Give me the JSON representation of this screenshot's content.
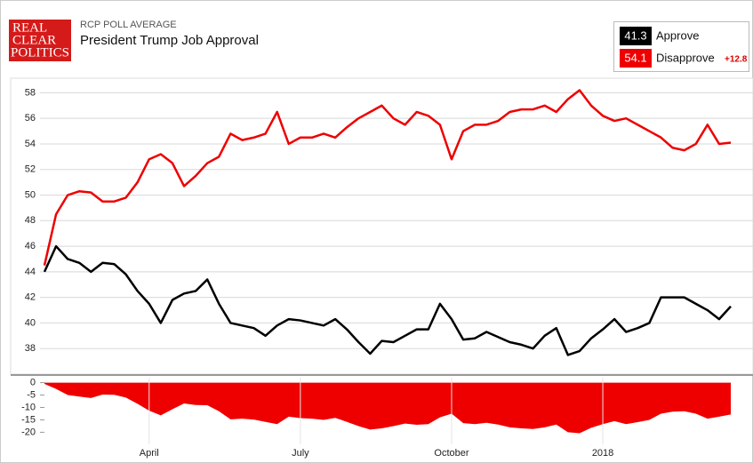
{
  "header": {
    "logo": [
      "REAL",
      "CLEAR",
      "POLITICS"
    ],
    "kicker": "RCP POLL AVERAGE",
    "title": "President Trump Job Approval"
  },
  "legend": {
    "approve_value": "41.3",
    "disapprove_value": "54.1",
    "spread": "+12.8"
  },
  "chart_data": [
    {
      "type": "line",
      "ylim": [
        36,
        59
      ],
      "yticks": [
        38,
        40,
        42,
        44,
        46,
        48,
        50,
        52,
        54,
        56,
        58
      ],
      "grid": true,
      "series": [
        {
          "name": "Approve",
          "color": "#000000",
          "values": [
            44,
            46,
            45,
            44.7,
            44,
            44.7,
            44.6,
            43.8,
            42.5,
            41.5,
            40,
            41.8,
            42.3,
            42.5,
            43.4,
            41.5,
            40,
            39.8,
            39.6,
            39,
            39.8,
            40.3,
            40.2,
            40,
            39.8,
            40.3,
            39.5,
            38.5,
            37.6,
            38.6,
            38.5,
            39,
            39.5,
            39.5,
            41.5,
            40.3,
            38.7,
            38.8,
            39.3,
            38.9,
            38.5,
            38.3,
            38,
            39,
            39.6,
            37.5,
            37.8,
            38.8,
            39.5,
            40.3,
            39.3,
            39.6,
            40,
            42,
            42,
            42,
            41.5,
            41,
            40.3,
            41.3
          ]
        },
        {
          "name": "Disapprove",
          "color": "#ee0000",
          "values": [
            44.5,
            48.5,
            50,
            50.3,
            50.2,
            49.5,
            49.5,
            49.8,
            51,
            52.8,
            53.2,
            52.5,
            50.7,
            51.5,
            52.5,
            53,
            54.8,
            54.3,
            54.5,
            54.8,
            56.5,
            54,
            54.5,
            54.5,
            54.8,
            54.5,
            55.3,
            56,
            56.5,
            57,
            56,
            55.5,
            56.5,
            56.2,
            55.5,
            52.8,
            55,
            55.5,
            55.5,
            55.8,
            56.5,
            56.7,
            56.7,
            57,
            56.5,
            57.5,
            58.2,
            57,
            56.2,
            55.8,
            56,
            55.5,
            55,
            54.5,
            53.7,
            53.5,
            54,
            55.5,
            54,
            54.1
          ]
        }
      ]
    },
    {
      "type": "area",
      "color": "#ee0000",
      "ylim": [
        -22,
        2
      ],
      "yticks": [
        0,
        -5,
        -10,
        -15,
        -20
      ],
      "categories": [
        null,
        null,
        null,
        null,
        null,
        null,
        null,
        null,
        null,
        "April",
        null,
        null,
        null,
        null,
        null,
        null,
        null,
        null,
        null,
        null,
        null,
        null,
        "July",
        null,
        null,
        null,
        null,
        null,
        null,
        null,
        null,
        null,
        null,
        null,
        null,
        "October",
        null,
        null,
        null,
        null,
        null,
        null,
        null,
        null,
        null,
        null,
        null,
        null,
        "2018",
        null,
        null,
        null,
        null,
        null,
        null,
        null,
        null,
        null,
        null,
        null
      ],
      "values": [
        -0.5,
        -2.5,
        -5,
        -5.6,
        -6.2,
        -4.8,
        -4.9,
        -6,
        -8.5,
        -11.3,
        -13.2,
        -10.7,
        -8.4,
        -9,
        -9.1,
        -11.5,
        -14.8,
        -14.5,
        -14.9,
        -15.8,
        -16.7,
        -13.7,
        -14.3,
        -14.5,
        -15,
        -14.2,
        -15.8,
        -17.5,
        -18.9,
        -18.4,
        -17.5,
        -16.5,
        -17,
        -16.7,
        -14,
        -12.5,
        -16.3,
        -16.7,
        -16.2,
        -16.9,
        -18,
        -18.4,
        -18.7,
        -18,
        -16.9,
        -20,
        -20.4,
        -18.2,
        -16.7,
        -15.5,
        -16.7,
        -15.9,
        -15,
        -12.5,
        -11.7,
        -11.5,
        -12.5,
        -14.5,
        -13.7,
        -12.8
      ]
    }
  ]
}
